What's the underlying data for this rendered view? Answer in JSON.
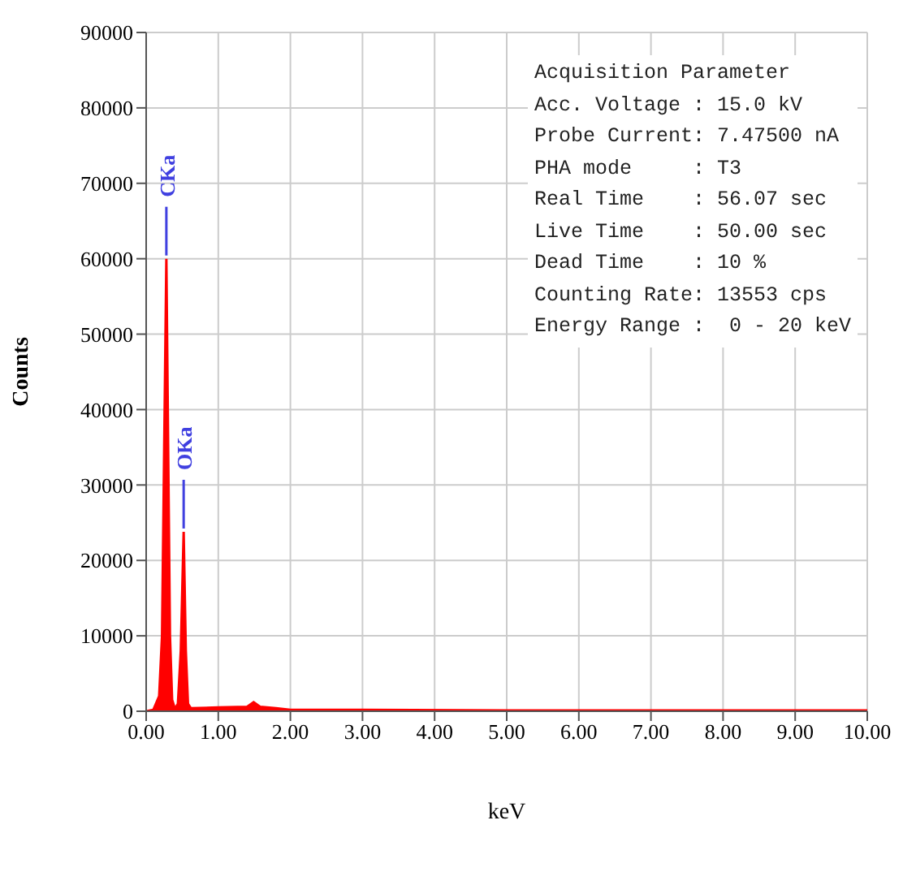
{
  "chart_data": {
    "type": "area",
    "xlabel": "keV",
    "ylabel": "Counts",
    "x": [
      0,
      0.1,
      0.18,
      0.22,
      0.25,
      0.28,
      0.3,
      0.33,
      0.36,
      0.4,
      0.44,
      0.48,
      0.52,
      0.55,
      0.58,
      0.62,
      1.0,
      1.4,
      1.49,
      1.58,
      1.8,
      2.0,
      3.0,
      5.0,
      10.0
    ],
    "series": [
      {
        "color": "#ff0000",
        "values": [
          0,
          200,
          2000,
          10000,
          35000,
          60000,
          40000,
          10000,
          1500,
          300,
          1000,
          8000,
          23800,
          8000,
          1000,
          400,
          500,
          600,
          1200,
          600,
          400,
          200,
          200,
          100,
          100
        ]
      }
    ],
    "xlim": [
      0,
      10
    ],
    "xticks": [
      {
        "value": 0,
        "label": "0.00"
      },
      {
        "value": 1,
        "label": "1.00"
      },
      {
        "value": 2,
        "label": "2.00"
      },
      {
        "value": 3,
        "label": "3.00"
      },
      {
        "value": 4,
        "label": "4.00"
      },
      {
        "value": 5,
        "label": "5.00"
      },
      {
        "value": 6,
        "label": "6.00"
      },
      {
        "value": 7,
        "label": "7.00"
      },
      {
        "value": 8,
        "label": "8.00"
      },
      {
        "value": 9,
        "label": "9.00"
      },
      {
        "value": 10,
        "label": "10.00"
      }
    ],
    "ylim": [
      0,
      90000
    ],
    "yticks": [
      0,
      10000,
      20000,
      30000,
      40000,
      50000,
      60000,
      70000,
      80000,
      90000
    ],
    "grid": true,
    "annotations": [
      "Acquisition Parameter",
      "Acc. Voltage : 15.0 kV",
      "Probe Current: 7.47500 nA",
      "PHA mode     : T3",
      "Real Time    : 56.07 sec",
      "Live Time    : 50.00 sec",
      "Dead Time    : 10 %",
      "Counting Rate: 13553 cps",
      "Energy Range :  0 - 20 keV",
      {
        "text": "CKa",
        "x": 0.28,
        "y": 60000
      },
      {
        "text": "OKa",
        "x": 0.52,
        "y": 23800
      }
    ]
  }
}
